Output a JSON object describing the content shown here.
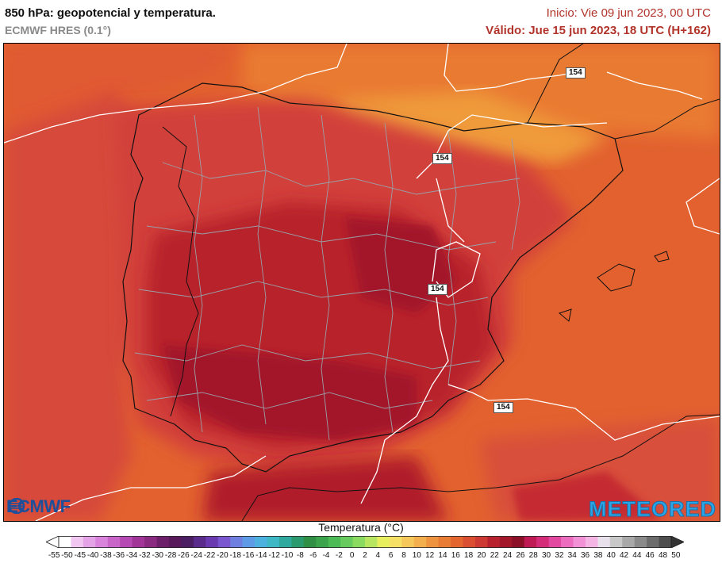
{
  "header": {
    "title": "850 hPa: geopotencial y temperatura.",
    "model": "ECMWF HRES (0.1°)",
    "init": "Inicio: Vie 09 jun 2023, 00 UTC",
    "valid": "Válido: Jue 15 jun 2023, 18 UTC (H+162)"
  },
  "map": {
    "isoline_labels": [
      "154",
      "154",
      "154",
      "154"
    ],
    "colors": {
      "sea_base": "#e2612f",
      "warm_land": "#d2413a",
      "hot_core": "#b8212b",
      "hottest": "#a3172a",
      "cooler_north": "#e97a33",
      "coolest_pyrenees": "#ef9a3a"
    }
  },
  "logos": {
    "left": "ECMWF",
    "right": "METEORED"
  },
  "legend": {
    "title": "Temperatura (°C)",
    "ticks": [
      "-55",
      "-50",
      "-45",
      "-40",
      "-38",
      "-36",
      "-34",
      "-32",
      "-30",
      "-28",
      "-26",
      "-24",
      "-22",
      "-20",
      "-18",
      "-16",
      "-14",
      "-12",
      "-10",
      "-8",
      "-6",
      "-4",
      "-2",
      "0",
      "2",
      "4",
      "6",
      "8",
      "10",
      "12",
      "14",
      "16",
      "18",
      "20",
      "22",
      "24",
      "26",
      "28",
      "30",
      "32",
      "34",
      "36",
      "38",
      "40",
      "42",
      "44",
      "46",
      "48",
      "50"
    ],
    "colors": [
      "#ffffff",
      "#f1c6f0",
      "#e4a3e6",
      "#d983dc",
      "#c964c9",
      "#b649b4",
      "#a23598",
      "#8a2a80",
      "#6e1f6a",
      "#581a5a",
      "#4b1d62",
      "#5a2b8a",
      "#6a3bb0",
      "#7a56cf",
      "#6f7fe0",
      "#5d9be7",
      "#4db1e0",
      "#3fb8c6",
      "#2fa99e",
      "#2b9a6f",
      "#2e8f45",
      "#3aa34b",
      "#4cba55",
      "#67cb5d",
      "#8cdb61",
      "#b8e660",
      "#e7ef5f",
      "#f7e066",
      "#f6c85b",
      "#f3ae4d",
      "#ee9340",
      "#e97c35",
      "#e3662f",
      "#da4f31",
      "#cd3a34",
      "#b8222e",
      "#a3172a",
      "#8c1028",
      "#c01a55",
      "#d52c7a",
      "#e2489f",
      "#ec6cc0",
      "#f291d6",
      "#f5b5e4",
      "#e8e0ea",
      "#c8c8c8",
      "#a8a8a8",
      "#8a8a8a",
      "#6c6c6c",
      "#4e4e4e"
    ]
  }
}
